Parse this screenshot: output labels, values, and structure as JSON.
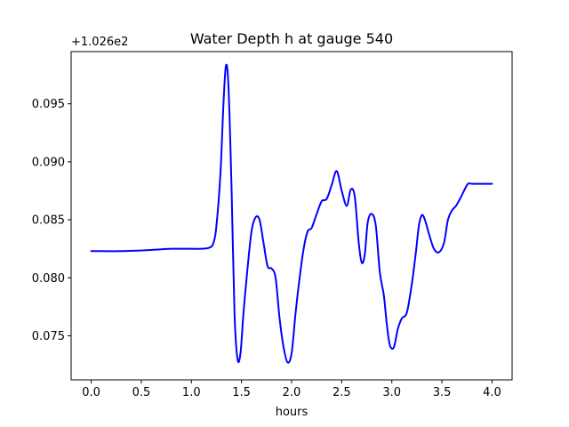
{
  "chart_data": {
    "type": "line",
    "title": "Water Depth h at gauge 540",
    "xlabel": "hours",
    "ylabel": "",
    "y_offset_label": "+1.026e2",
    "xlim": [
      -0.2,
      4.2
    ],
    "ylim": [
      0.0712,
      0.0995
    ],
    "x_ticks": [
      0.0,
      0.5,
      1.0,
      1.5,
      2.0,
      2.5,
      3.0,
      3.5,
      4.0
    ],
    "x_tick_labels": [
      "0.0",
      "0.5",
      "1.0",
      "1.5",
      "2.0",
      "2.5",
      "3.0",
      "3.5",
      "4.0"
    ],
    "y_ticks": [
      0.075,
      0.08,
      0.085,
      0.09,
      0.095
    ],
    "y_tick_labels": [
      "0.075",
      "0.080",
      "0.085",
      "0.090",
      "0.095"
    ],
    "grid": false,
    "series": [
      {
        "color": "#0000ff",
        "x": [
          0.0,
          0.3,
          0.6,
          0.8,
          1.0,
          1.1,
          1.18,
          1.22,
          1.25,
          1.29,
          1.32,
          1.345,
          1.37,
          1.4,
          1.43,
          1.46,
          1.49,
          1.52,
          1.56,
          1.6,
          1.64,
          1.68,
          1.72,
          1.76,
          1.8,
          1.84,
          1.88,
          1.92,
          1.96,
          2.0,
          2.04,
          2.08,
          2.12,
          2.16,
          2.2,
          2.25,
          2.3,
          2.35,
          2.4,
          2.45,
          2.5,
          2.55,
          2.59,
          2.63,
          2.67,
          2.7,
          2.73,
          2.76,
          2.8,
          2.84,
          2.88,
          2.92,
          2.95,
          2.98,
          3.02,
          3.06,
          3.1,
          3.15,
          3.2,
          3.24,
          3.27,
          3.3,
          3.33,
          3.37,
          3.42,
          3.47,
          3.52,
          3.56,
          3.6,
          3.64,
          3.68,
          3.72,
          3.76,
          3.8,
          3.85,
          3.9,
          3.95,
          4.0
        ],
        "y": [
          0.0823,
          0.0823,
          0.0824,
          0.0825,
          0.0825,
          0.0825,
          0.0826,
          0.083,
          0.0845,
          0.089,
          0.095,
          0.0983,
          0.0965,
          0.088,
          0.077,
          0.073,
          0.0735,
          0.077,
          0.0808,
          0.084,
          0.0852,
          0.085,
          0.083,
          0.081,
          0.0808,
          0.08,
          0.0765,
          0.074,
          0.0727,
          0.0735,
          0.077,
          0.08,
          0.0825,
          0.084,
          0.0843,
          0.0855,
          0.0866,
          0.0868,
          0.088,
          0.0892,
          0.0875,
          0.0862,
          0.0876,
          0.087,
          0.083,
          0.0813,
          0.082,
          0.0848,
          0.0855,
          0.0845,
          0.0805,
          0.0785,
          0.076,
          0.0742,
          0.074,
          0.0756,
          0.0765,
          0.077,
          0.0795,
          0.0822,
          0.0845,
          0.0854,
          0.085,
          0.0838,
          0.0825,
          0.0822,
          0.083,
          0.085,
          0.0858,
          0.0862,
          0.0868,
          0.0875,
          0.0881,
          0.0881,
          0.0881,
          0.0881,
          0.0881,
          0.0881
        ]
      }
    ]
  }
}
